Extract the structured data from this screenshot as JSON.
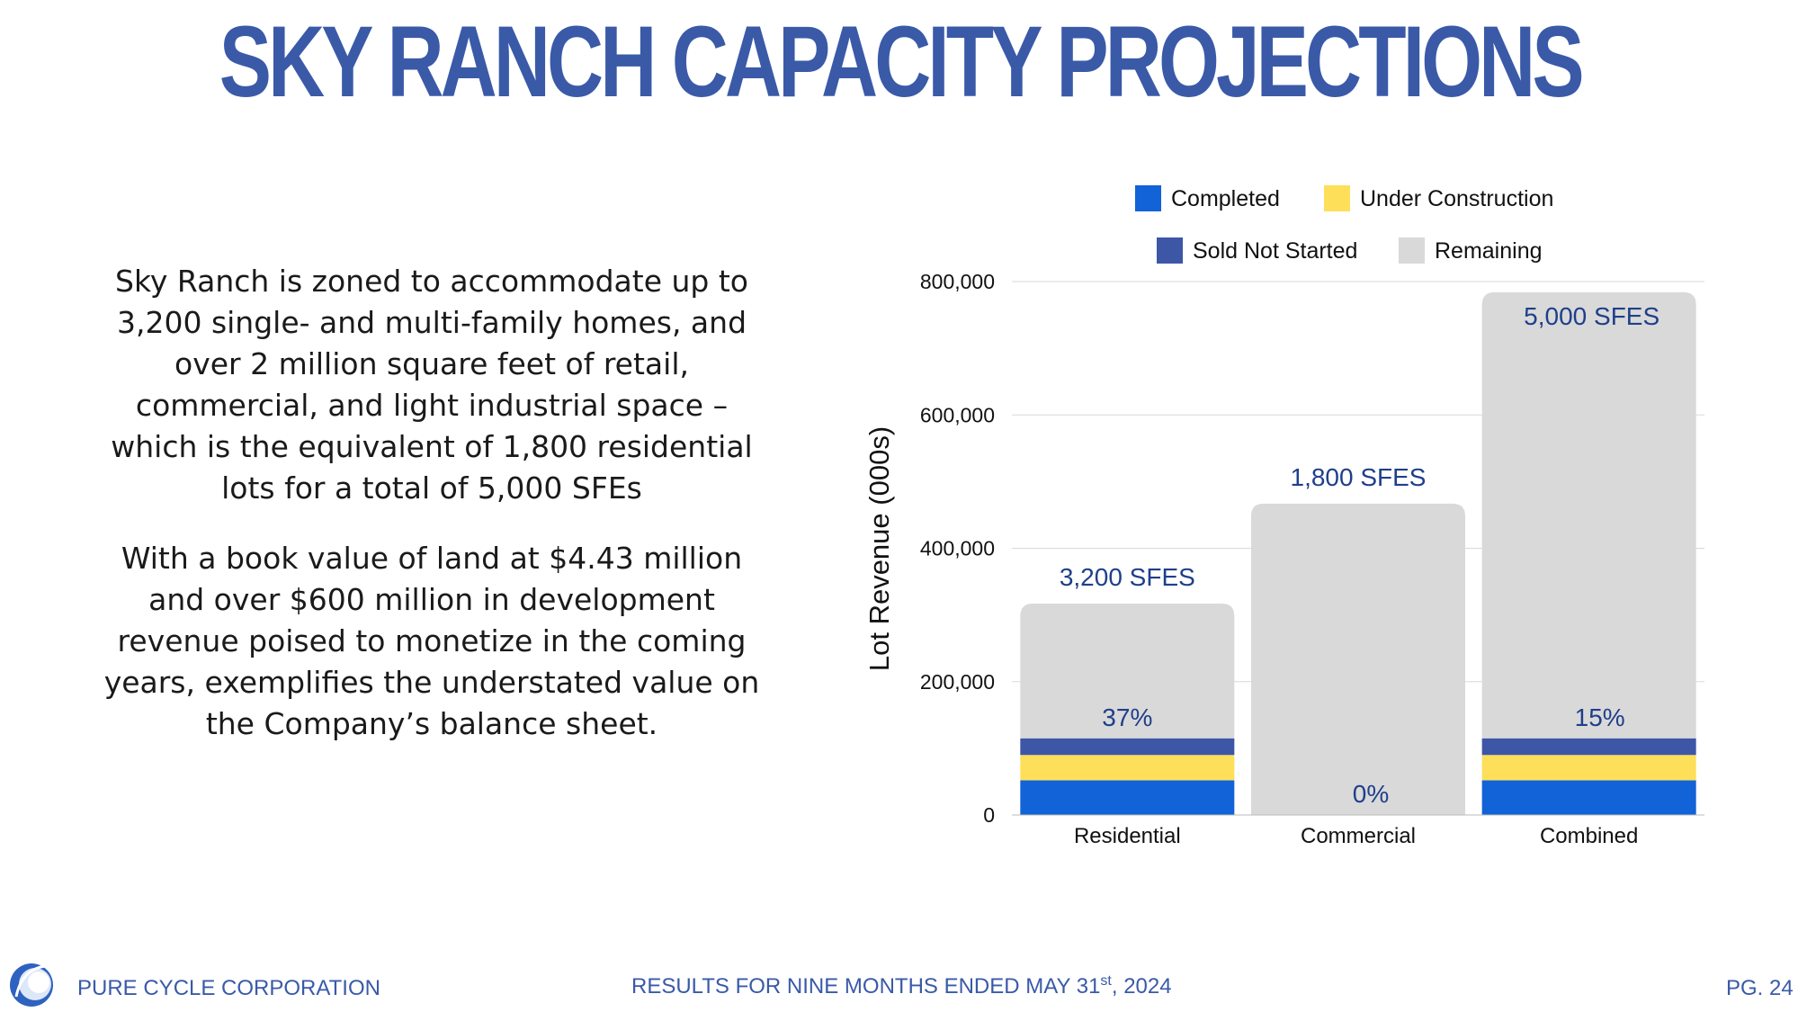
{
  "title": "SKY RANCH CAPACITY PROJECTIONS",
  "body": {
    "paragraph1": "Sky Ranch is zoned to accommodate up to 3,200 single- and multi-family homes, and over 2 million square feet of retail, commercial, and light industrial space – which is the equivalent of 1,800 residential lots for a total of 5,000 SFEs",
    "paragraph2": "With a book value of land at $4.43 million and over $600 million in development revenue poised to monetize in the coming years, exemplifies the understated value on the Company’s balance sheet."
  },
  "footer": {
    "company": "PURE CYCLE CORPORATION",
    "results_prefix": "RESULTS FOR NINE MONTHS ENDED MAY 31",
    "results_sup": "st",
    "results_suffix": ", 2024",
    "page": "PG. 24"
  },
  "colors": {
    "title": "#3a5aa8",
    "completed": "#1262d8",
    "under_construction": "#fddf5a",
    "sold_not_started": "#3d56a6",
    "remaining": "#d9d9d9",
    "bar_label": "#1e3f8a"
  },
  "chart_data": {
    "type": "bar",
    "stacked": true,
    "title": "",
    "xlabel": "",
    "ylabel": "Lot Revenue (000s)",
    "ylim": [
      0,
      800000
    ],
    "yticks": [
      0,
      200000,
      400000,
      600000,
      800000
    ],
    "ytick_labels": [
      "0",
      "200,000",
      "400,000",
      "600,000",
      "800,000"
    ],
    "grid": true,
    "legend_position": "top",
    "categories": [
      "Residential",
      "Commercial",
      "Combined"
    ],
    "series": [
      {
        "name": "Completed",
        "values": [
          52000,
          0,
          52000
        ]
      },
      {
        "name": "Under Construction",
        "values": [
          38000,
          0,
          38000
        ]
      },
      {
        "name": "Sold Not Started",
        "values": [
          25000,
          0,
          25000
        ]
      },
      {
        "name": "Remaining",
        "values": [
          202000,
          467000,
          669000
        ]
      }
    ],
    "total_labels": [
      "3,200 SFES",
      "1,800 SFES",
      "5,000 SFES"
    ],
    "percent_labels": [
      "37%",
      "0%",
      "15%"
    ]
  }
}
